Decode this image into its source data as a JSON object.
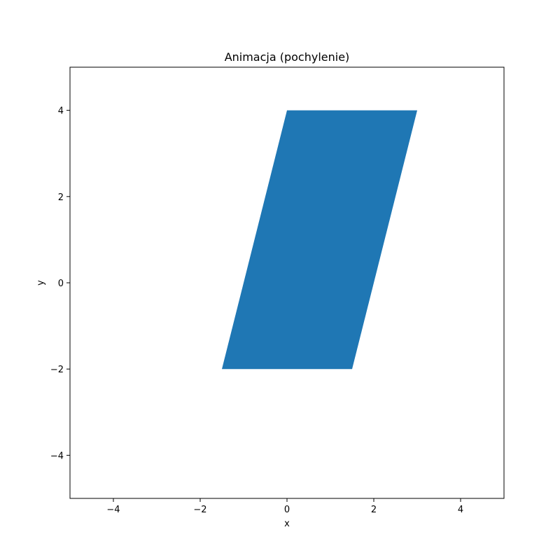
{
  "chart_data": {
    "type": "area",
    "title": "Animacja (pochylenie)",
    "xlabel": "x",
    "ylabel": "y",
    "xlim": [
      -5,
      5
    ],
    "ylim": [
      -5,
      5
    ],
    "xticks": [
      -4,
      -2,
      0,
      2,
      4
    ],
    "yticks": [
      -4,
      -2,
      0,
      2,
      4
    ],
    "xtick_labels": [
      "−4",
      "−2",
      "0",
      "2",
      "4"
    ],
    "ytick_labels": [
      "−4",
      "−2",
      "0",
      "2",
      "4"
    ],
    "grid": false,
    "colors": {
      "fill": "#1f77b4",
      "axes": "#000000",
      "background": "#ffffff"
    },
    "polygon": {
      "vertices": [
        [
          -1.5,
          -2
        ],
        [
          1.5,
          -2
        ],
        [
          3,
          4
        ],
        [
          0,
          4
        ]
      ]
    }
  }
}
